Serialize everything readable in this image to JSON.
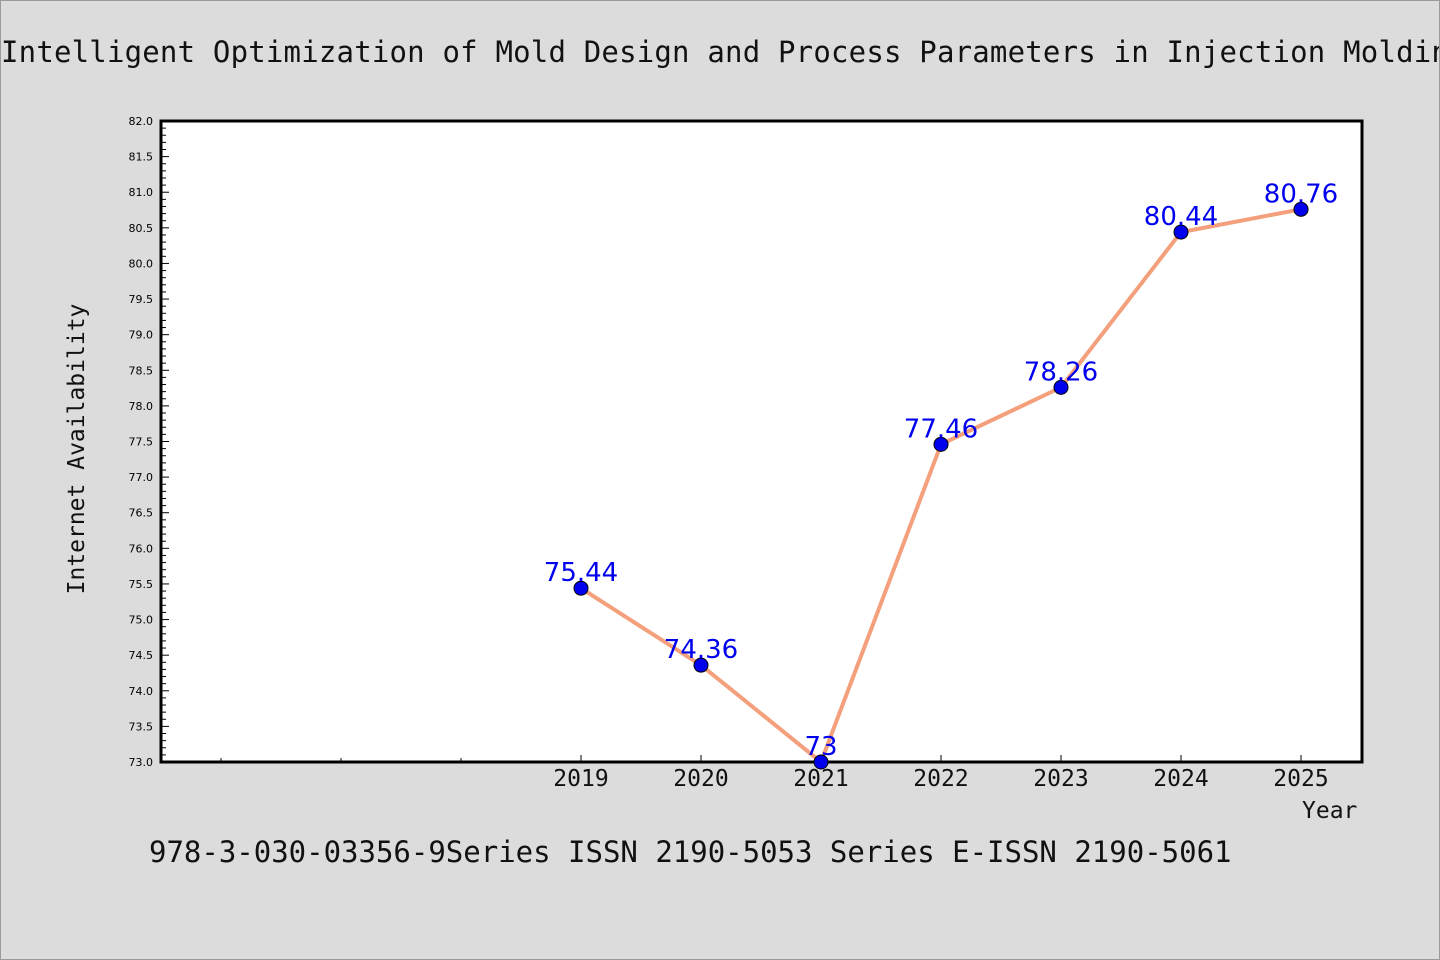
{
  "chart_data": {
    "type": "line",
    "title": "Intelligent Optimization of Mold Design and Process Parameters in Injection Molding",
    "xlabel": "Year",
    "ylabel": "Internet Availability",
    "x": [
      "2019",
      "2020",
      "2021",
      "2022",
      "2023",
      "2024",
      "2025"
    ],
    "series": [
      {
        "values": [
          75.44,
          74.36,
          73,
          77.46,
          78.26,
          80.44,
          80.76
        ],
        "data_labels": [
          "75.44",
          "74.36",
          "73",
          "77.46",
          "78.26",
          "80.44",
          "80.76"
        ]
      }
    ],
    "ylim": [
      73.0,
      82.0
    ],
    "yticks": [
      "73.0",
      "73.5",
      "74.0",
      "74.5",
      "75.0",
      "75.5",
      "76.0",
      "76.5",
      "77.0",
      "77.5",
      "78.0",
      "78.5",
      "79.0",
      "79.5",
      "80.0",
      "80.5",
      "81.0",
      "81.5",
      "82.0"
    ],
    "grid": false,
    "line_color": "#f4a07c",
    "marker_color": "#0000ee",
    "label_color": "#0000ee"
  },
  "footer": "978-3-030-03356-9Series ISSN 2190-5053 Series E-ISSN 2190-5061"
}
